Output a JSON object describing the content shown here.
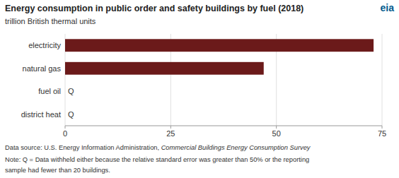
{
  "chart_data": {
    "type": "bar",
    "orientation": "horizontal",
    "title": "Energy consumption in public order and safety buildings by fuel (2018)",
    "subtitle": "trillion British thermal units",
    "categories": [
      "electricity",
      "natural gas",
      "fuel oil",
      "district heat"
    ],
    "values": [
      73,
      47,
      0,
      0
    ],
    "value_labels": [
      null,
      null,
      "Q",
      "Q"
    ],
    "color": "#6B1A1A",
    "xlim": [
      0,
      75
    ],
    "xticks": [
      0,
      25,
      50,
      75
    ],
    "grid": true,
    "annotations": [
      {
        "text": "eia",
        "color": "#005b8e"
      }
    ],
    "footnotes": [
      "Data source: U.S. Energy Information Administration,",
      "Commercial Buildings Energy Consumption Survey",
      "Note: Q = Data withheld either because the relative standard error was greater than 50% or the reporting",
      "sample had fewer than 20 buildings."
    ]
  }
}
